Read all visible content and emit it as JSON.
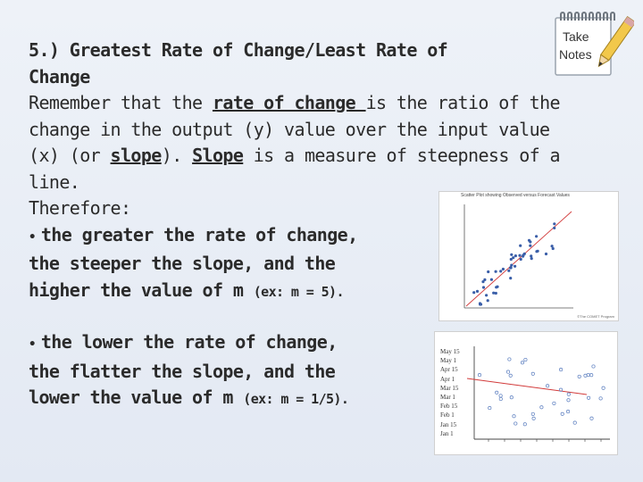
{
  "slide": {
    "heading_line1": "5.)  Greatest Rate of Change/Least Rate of",
    "heading_line2": "Change",
    "p1_pre": "Remember that the ",
    "p1_rate": "rate of change ",
    "p1_post": "is the ratio of the",
    "p2": "change in the output (y) value over the input value",
    "p3_pre": "(x) (or ",
    "p3_slope": "slope",
    "p3_mid": ").  ",
    "p3_slope2": "Slope",
    "p3_post": " is a measure of steepness of a",
    "p4": "line.",
    "therefore": "Therefore:",
    "bullet_char": "•",
    "b1_line1": "the greater the rate of change,",
    "b1_line2": "the steeper the slope, and the",
    "b1_line3": "higher the value of m ",
    "b1_example": "(ex: m = 5).",
    "b2_line1": "the lower the rate of change,",
    "b2_line2": "the flatter the slope, and the",
    "b2_line3": "lower the value of m ",
    "b2_example": "(ex: m = 1/5)."
  },
  "notes_icon": {
    "word1": "Take",
    "word2": "Notes",
    "paper_color": "#ffffff",
    "pencil_color": "#f2c84b"
  },
  "chart_data": [
    {
      "type": "scatter",
      "title": "Scatter Plot showing Observed versus Forecast Values",
      "footer": "©The COMET Program",
      "trend_color": "#d23b3b",
      "point_color": "#3a5ea8"
    },
    {
      "type": "scatter",
      "y_tick_labels": [
        "May 15",
        "May 1",
        "Apr 15",
        "Apr 1",
        "Mar 15",
        "Mar 1",
        "Feb 15",
        "Feb 1",
        "Jan 15",
        "Jan 1"
      ],
      "trend_color": "#d23b3b",
      "point_color": "#5a7dbf"
    }
  ]
}
